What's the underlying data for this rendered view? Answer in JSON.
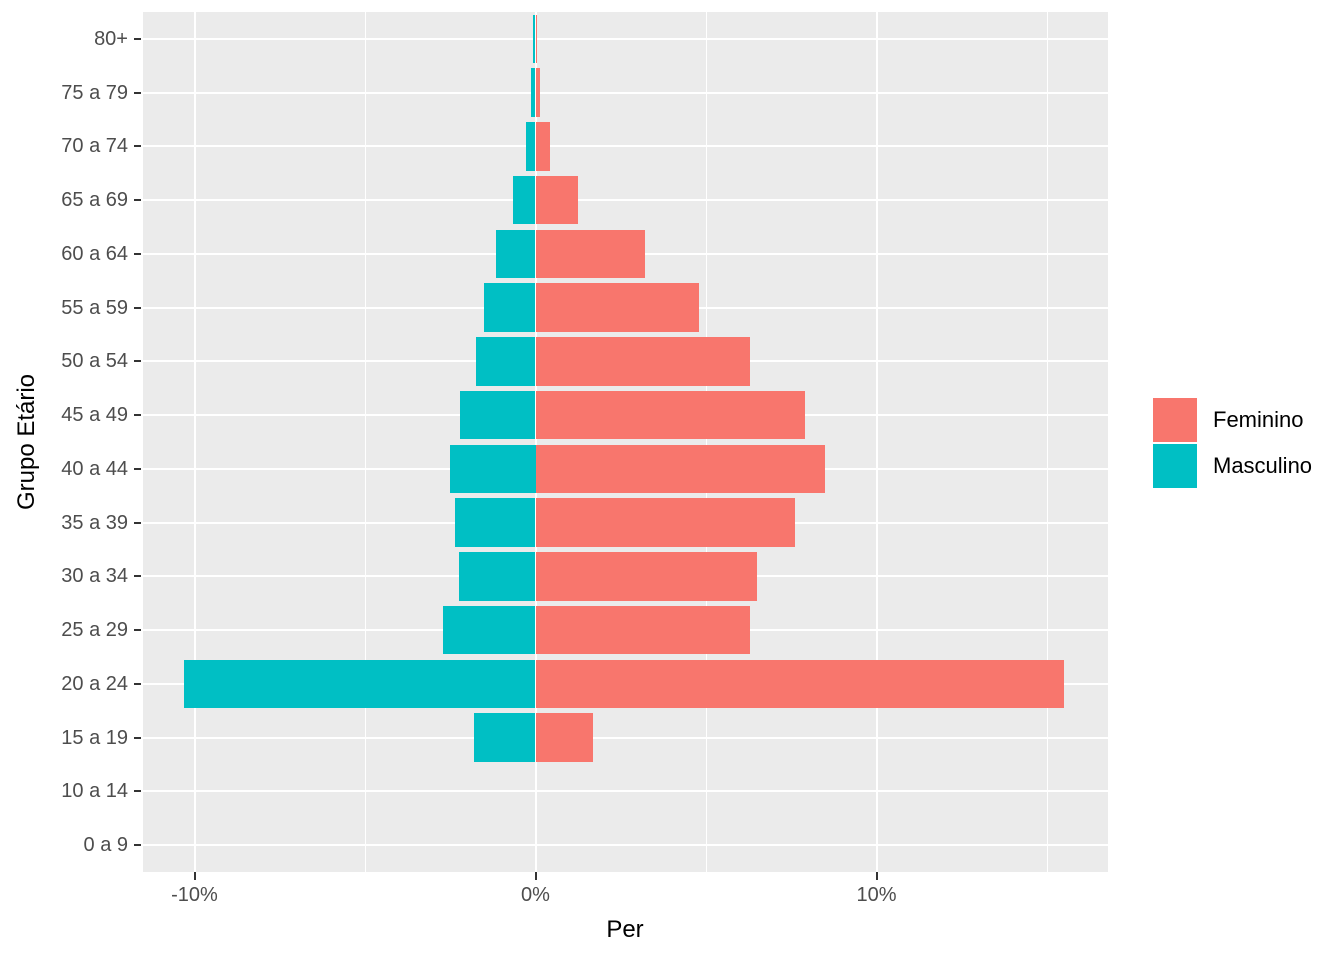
{
  "chart_data": {
    "type": "bar",
    "variant": "population-pyramid-horizontal",
    "title": "",
    "xlabel": "Per",
    "ylabel": "Grupo Etário",
    "x_tick_labels": [
      "-10%",
      "0%",
      "10%"
    ],
    "x_tick_values": [
      -10,
      0,
      10
    ],
    "x_minor_gridline_values": [
      -5,
      5,
      15
    ],
    "xlim": [
      -11.6,
      16.8
    ],
    "grid": true,
    "panel_background": "#EBEBEB",
    "gridline_color": "#FFFFFF",
    "axis_text_color": "#4D4D4D",
    "categories_top_to_bottom": [
      "80+",
      "75 a 79",
      "70 a 74",
      "65 a 69",
      "60 a 64",
      "55 a 59",
      "50 a 54",
      "45 a 49",
      "40 a 44",
      "35 a 39",
      "30 a 34",
      "25 a 29",
      "20 a 24",
      "15 a 19",
      "10 a 14",
      "0 a 9"
    ],
    "series": [
      {
        "name": "Feminino",
        "color": "#F8766D",
        "side": "right",
        "values": [
          0.05,
          0.13,
          0.43,
          1.25,
          3.2,
          4.8,
          6.3,
          7.9,
          8.5,
          7.6,
          6.5,
          6.3,
          15.5,
          1.7,
          0,
          0
        ]
      },
      {
        "name": "Masculino",
        "color": "#00BFC4",
        "side": "left",
        "values": [
          -0.08,
          -0.13,
          -0.28,
          -0.65,
          -1.15,
          -1.5,
          -1.75,
          -2.2,
          -2.5,
          -2.35,
          -2.25,
          -2.7,
          -10.3,
          -1.8,
          0,
          0
        ]
      }
    ],
    "legend": {
      "position": "right",
      "entries": [
        "Feminino",
        "Masculino"
      ]
    }
  }
}
